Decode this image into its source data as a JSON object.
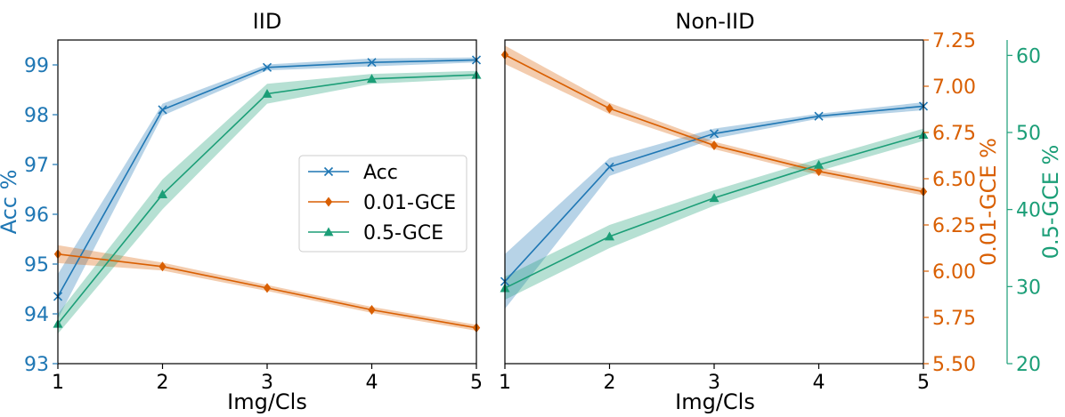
{
  "colors": {
    "acc": "#1f77b4",
    "gce001": "#d95f02",
    "gce05": "#1b9e77",
    "axis": "#000000"
  },
  "chart_data": [
    {
      "type": "line",
      "title": "IID",
      "xlabel": "Img/Cls",
      "ylabel": "Acc %",
      "x": [
        1,
        2,
        3,
        4,
        5
      ],
      "xticks": [
        "1",
        "2",
        "3",
        "4",
        "5"
      ],
      "xlim": [
        1,
        5
      ],
      "ylim": [
        93,
        99.5
      ],
      "yticks": [
        "93",
        "94",
        "95",
        "96",
        "97",
        "98",
        "99"
      ],
      "series": [
        {
          "name": "Acc",
          "marker": "x",
          "values": [
            94.35,
            98.1,
            98.95,
            99.05,
            99.1
          ],
          "band": [
            0.45,
            0.12,
            0.06,
            0.08,
            0.05
          ]
        },
        {
          "name": "0.01-GCE",
          "marker": "diamond",
          "values": [
            95.2,
            94.95,
            94.52,
            94.08,
            93.72
          ],
          "band": [
            0.18,
            0.08,
            0.06,
            0.06,
            0.06
          ]
        },
        {
          "name": "0.5-GCE",
          "marker": "triangle",
          "values": [
            93.8,
            96.4,
            98.42,
            98.72,
            98.8
          ],
          "band": [
            0.2,
            0.3,
            0.2,
            0.1,
            0.08
          ]
        }
      ],
      "legend": {
        "position": "center-right",
        "entries": [
          "Acc",
          "0.01-GCE",
          "0.5-GCE"
        ]
      }
    },
    {
      "type": "line",
      "title": "Non-IID",
      "xlabel": "Img/Cls",
      "x": [
        1,
        2,
        3,
        4,
        5
      ],
      "xticks": [
        "1",
        "2",
        "3",
        "4",
        "5"
      ],
      "xlim": [
        1,
        5
      ],
      "left_ylim": [
        93,
        99.5
      ],
      "y_axes": [
        {
          "side": "right",
          "label": "0.01-GCE %",
          "color_key": "gce001",
          "range": [
            5.5,
            7.25
          ],
          "ticks": [
            "5.50",
            "5.75",
            "6.00",
            "6.25",
            "6.50",
            "6.75",
            "7.00",
            "7.25"
          ]
        },
        {
          "side": "right-outer",
          "label": "0.5-GCE %",
          "color_key": "gce05",
          "range": [
            20,
            62
          ],
          "ticks": [
            "20",
            "30",
            "40",
            "50",
            "60"
          ]
        }
      ],
      "series": [
        {
          "name": "Acc",
          "axis": "left",
          "marker": "x",
          "values": [
            94.65,
            96.95,
            97.62,
            97.97,
            98.17
          ],
          "band": [
            0.55,
            0.18,
            0.1,
            0.05,
            0.08
          ]
        },
        {
          "name": "0.01-GCE",
          "axis": "right",
          "marker": "diamond",
          "values": [
            7.17,
            6.88,
            6.68,
            6.54,
            6.43
          ],
          "band": [
            0.05,
            0.03,
            0.02,
            0.02,
            0.02
          ]
        },
        {
          "name": "0.5-GCE",
          "axis": "right-outer",
          "marker": "triangle",
          "values": [
            29.8,
            36.5,
            41.5,
            45.8,
            49.7
          ],
          "band": [
            1.5,
            1.5,
            1.0,
            0.8,
            0.8
          ]
        }
      ]
    }
  ]
}
